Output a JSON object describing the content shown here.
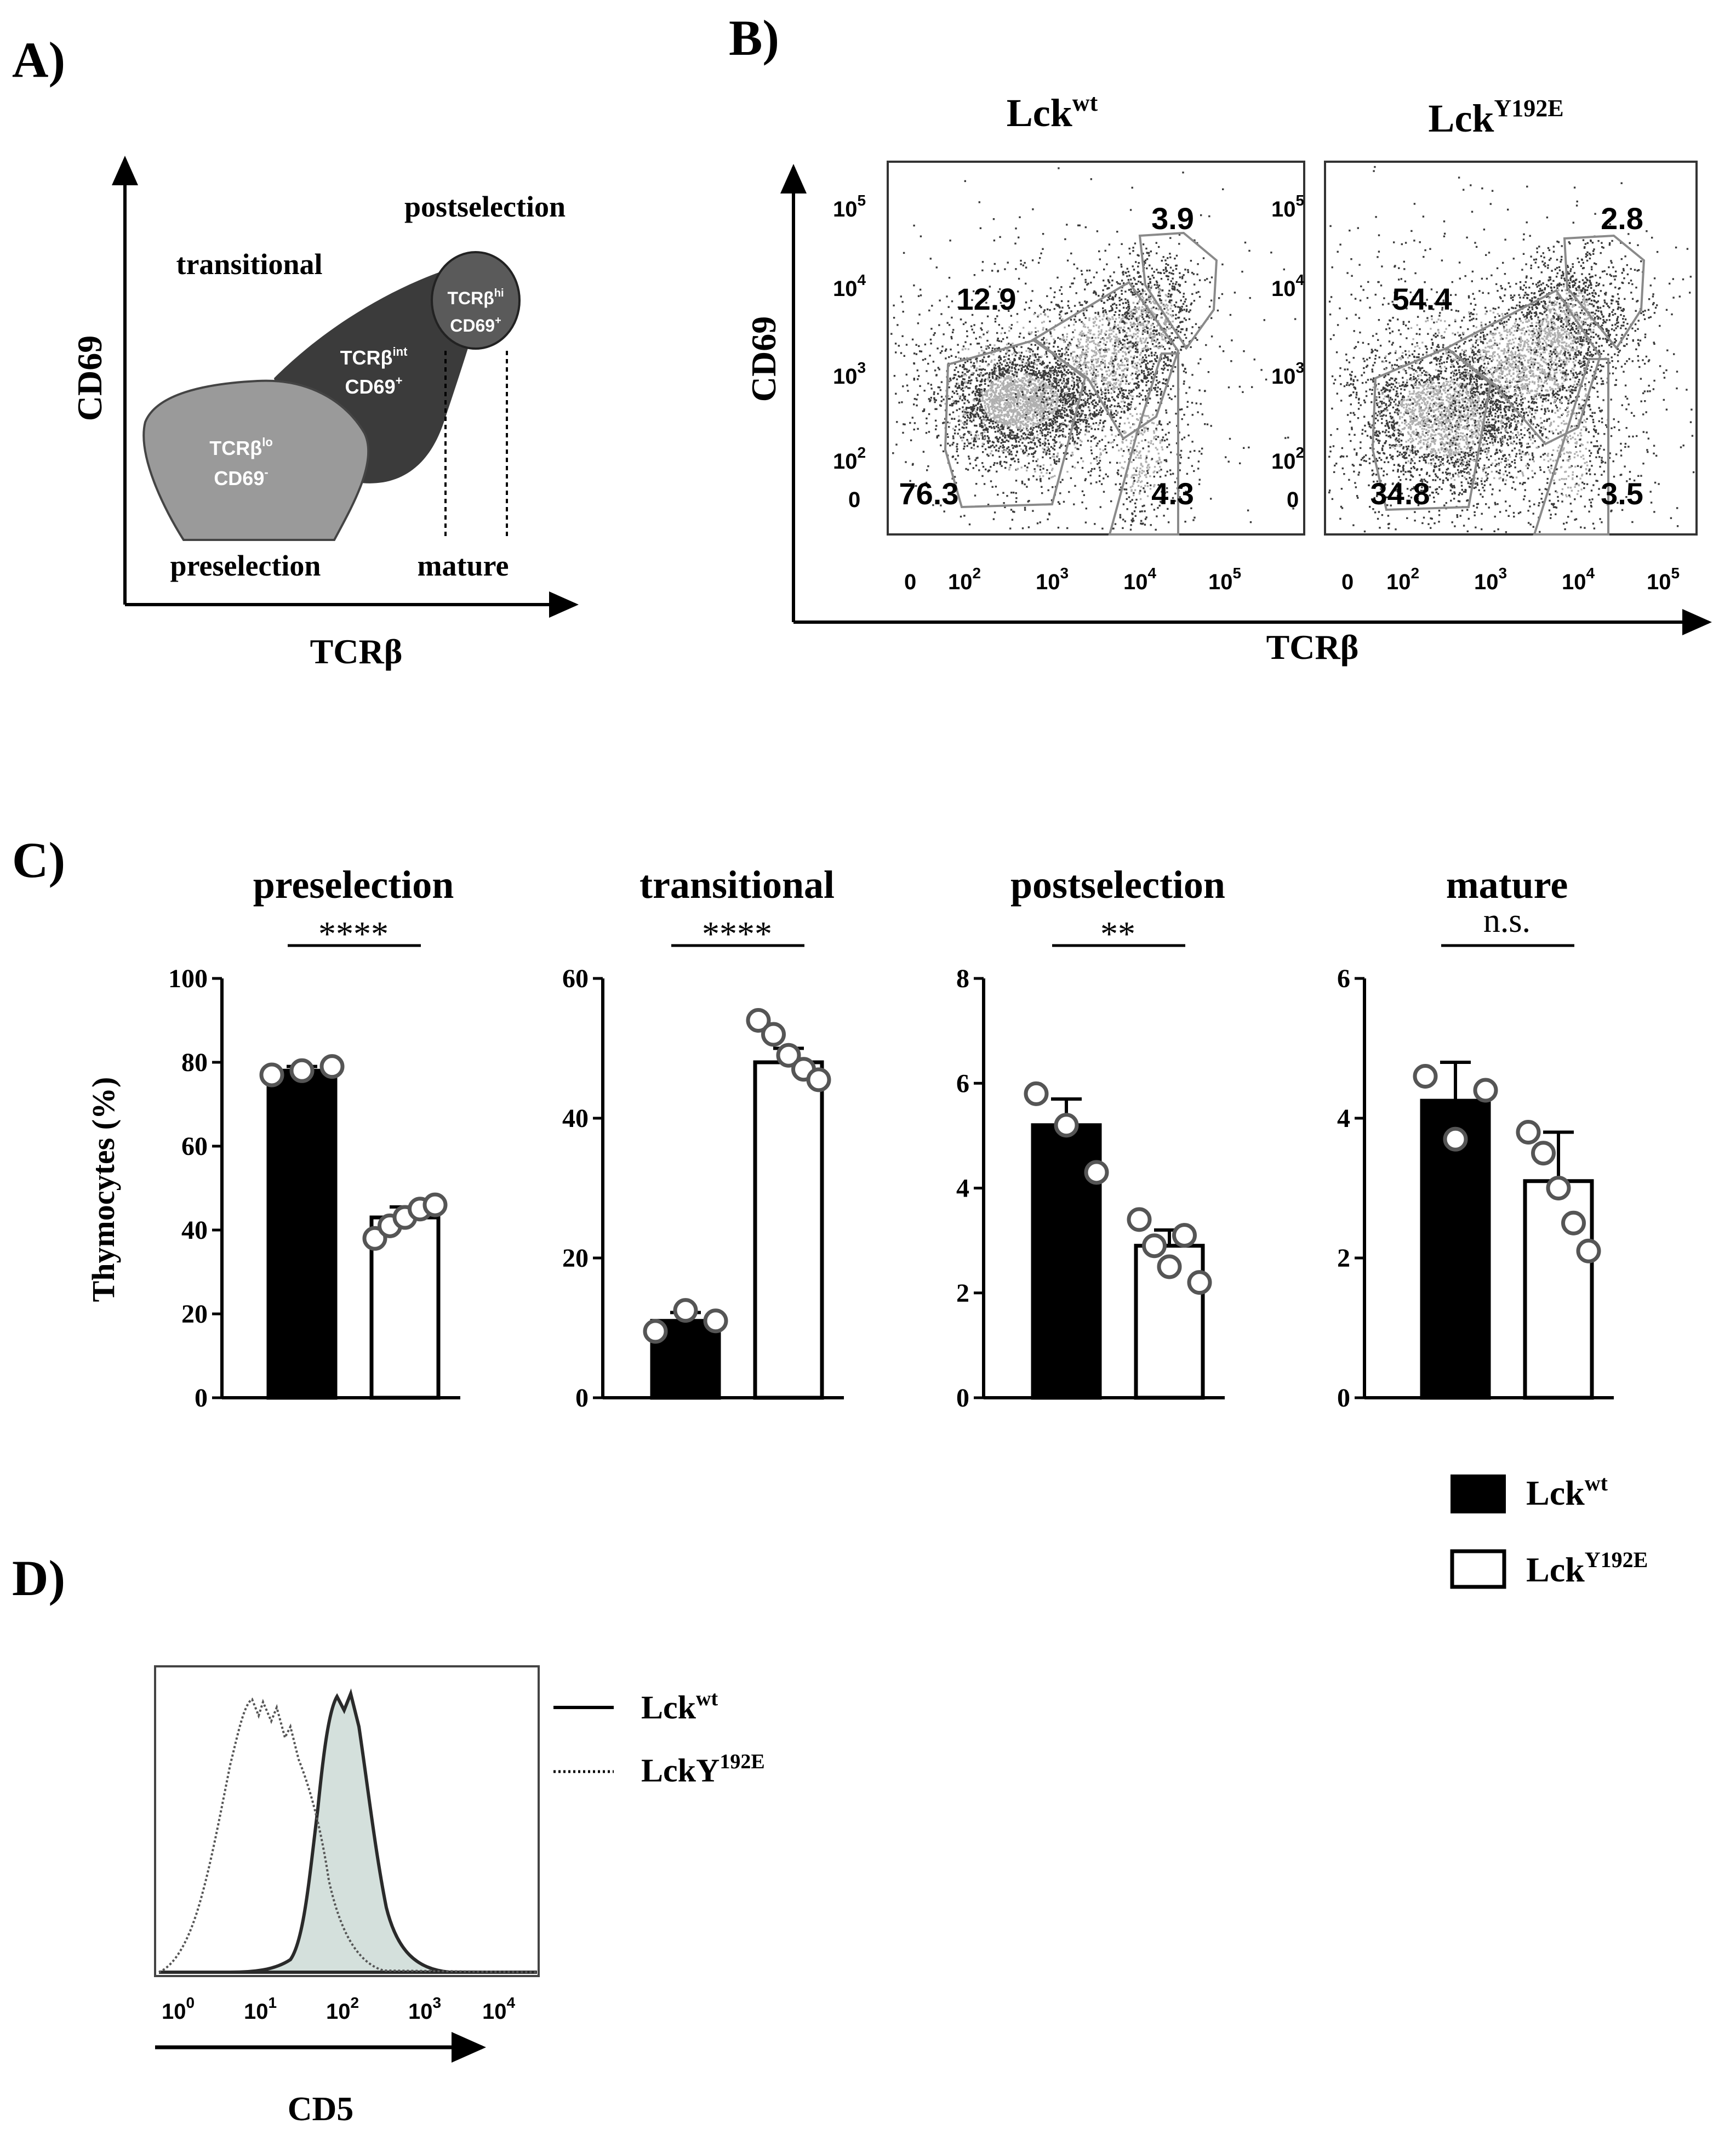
{
  "panel_labels": {
    "a": "A)",
    "b": "B)",
    "c": "C)",
    "d": "D)"
  },
  "colors": {
    "black": "#000000",
    "dark": "#3a3a3a",
    "mid_gray": "#8a8a8a",
    "gate": "#9a9a9a",
    "fill": "#d4e0dc"
  },
  "panel_a": {
    "y_axis": "CD69",
    "x_axis": "TCRβ",
    "regions": {
      "transitional": "transitional",
      "postselection": "postselection",
      "preselection": "preselection",
      "mature": "mature"
    },
    "blobs": {
      "pre_line1": "TCRβ",
      "pre_sup1": "lo",
      "pre_line2": "CD69",
      "pre_sup2": "-",
      "int_line1": "TCRβ",
      "int_sup1": "int",
      "int_line2": "CD69",
      "int_sup2": "+",
      "hi_line1": "TCRβ",
      "hi_sup1": "hi",
      "hi_line2": "CD69",
      "hi_sup2": "+"
    }
  },
  "panel_b": {
    "y_axis": "CD69",
    "x_axis": "TCRβ",
    "ticks": {
      "zero": "0",
      "base": "10",
      "exps": [
        "2",
        "3",
        "4",
        "5"
      ]
    },
    "plots": [
      {
        "title_base": "Lck",
        "title_sup": "wt",
        "values": {
          "transitional": "12.9",
          "postselection": "3.9",
          "preselection": "76.3",
          "mature": "4.3"
        }
      },
      {
        "title_base": "Lck",
        "title_sup": "Y192E",
        "values": {
          "transitional": "54.4",
          "postselection": "2.8",
          "preselection": "34.8",
          "mature": "3.5"
        }
      }
    ]
  },
  "chart_data": [
    {
      "type": "bar",
      "title": "preselection",
      "ylabel": "Thymocytes (%)",
      "ylim": [
        0,
        100
      ],
      "yticks": [
        "0",
        "20",
        "40",
        "60",
        "80",
        "100"
      ],
      "categories": [
        "Lckwt",
        "LckY192E"
      ],
      "values": [
        78,
        43
      ],
      "errors": [
        1,
        2.5
      ],
      "points": [
        [
          77,
          78,
          79
        ],
        [
          38,
          41,
          43,
          45,
          46
        ]
      ],
      "significance": "****"
    },
    {
      "type": "bar",
      "title": "transitional",
      "ylabel": "Thymocytes (%)",
      "ylim": [
        0,
        60
      ],
      "yticks": [
        "0",
        "20",
        "40",
        "60"
      ],
      "categories": [
        "Lckwt",
        "LckY192E"
      ],
      "values": [
        11,
        48
      ],
      "errors": [
        1.2,
        2
      ],
      "points": [
        [
          9.5,
          12.5,
          11
        ],
        [
          54,
          52,
          49,
          47,
          45.5
        ]
      ],
      "significance": "****"
    },
    {
      "type": "bar",
      "title": "postselection",
      "ylabel": "Thymocytes (%)",
      "ylim": [
        0,
        8
      ],
      "yticks": [
        "0",
        "2",
        "4",
        "6",
        "8"
      ],
      "categories": [
        "Lckwt",
        "LckY192E"
      ],
      "values": [
        5.2,
        2.9
      ],
      "errors": [
        0.5,
        0.3
      ],
      "points": [
        [
          5.8,
          5.2,
          4.3
        ],
        [
          3.4,
          2.9,
          2.5,
          3.1,
          2.2
        ]
      ],
      "significance": "**"
    },
    {
      "type": "bar",
      "title": "mature",
      "ylabel": "Thymocytes (%)",
      "ylim": [
        0,
        6
      ],
      "yticks": [
        "0",
        "2",
        "4",
        "6"
      ],
      "categories": [
        "Lckwt",
        "LckY192E"
      ],
      "values": [
        4.25,
        3.1
      ],
      "errors": [
        0.55,
        0.7
      ],
      "points": [
        [
          4.6,
          3.7,
          4.4
        ],
        [
          3.8,
          3.5,
          3.0,
          2.5,
          2.1
        ]
      ],
      "significance": "n.s."
    }
  ],
  "legend_c": [
    {
      "base": "Lck",
      "sup": "wt"
    },
    {
      "base": "Lck",
      "sup": "Y192E"
    }
  ],
  "panel_d": {
    "x_axis": "CD5",
    "ticks": {
      "base": "10",
      "exps": [
        "0",
        "1",
        "2",
        "3",
        "4"
      ]
    },
    "legend": [
      {
        "base": "Lck",
        "sup": "wt",
        "style": "solid"
      },
      {
        "base": "LckY",
        "sup": "192E",
        "style": "dotted"
      }
    ]
  }
}
